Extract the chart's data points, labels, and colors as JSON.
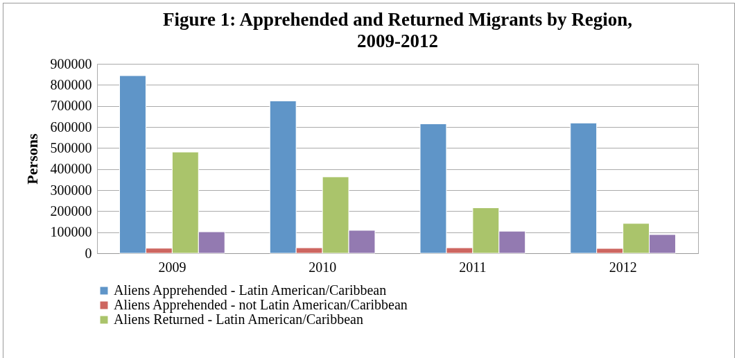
{
  "chart_data": {
    "type": "bar",
    "title": "Figure 1: Apprehended and Returned Migrants by Region, 2009-2012",
    "ylabel": "Persons",
    "categories": [
      "2009",
      "2010",
      "2011",
      "2012"
    ],
    "series": [
      {
        "name": "Aliens Apprehended - Latin American/Caribbean",
        "color": "#5f95c8",
        "values": [
          844000,
          724000,
          615000,
          619000
        ]
      },
      {
        "name": "Aliens Apprehended - not Latin American/Caribbean",
        "color": "#cd6660",
        "values": [
          24000,
          26000,
          26000,
          23000
        ]
      },
      {
        "name": "Aliens Returned - Latin American/Caribbean",
        "color": "#aac46b",
        "values": [
          481000,
          363000,
          216000,
          142000
        ]
      },
      {
        "color": "#937ab1",
        "values": [
          102000,
          109000,
          105000,
          89000
        ]
      }
    ],
    "ylim": [
      0,
      900000
    ],
    "yticks": [
      0,
      100000,
      200000,
      300000,
      400000,
      500000,
      600000,
      700000,
      800000,
      900000
    ],
    "grid": "y",
    "legend": "bottom"
  }
}
